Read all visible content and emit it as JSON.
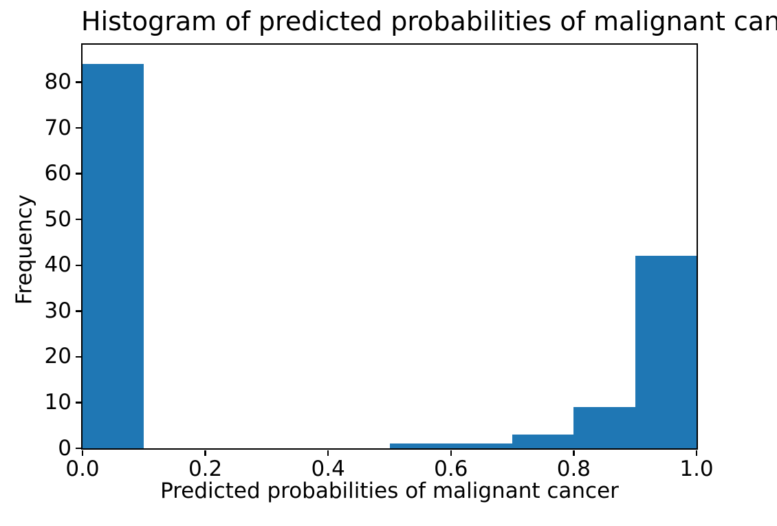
{
  "chart_data": {
    "type": "bar",
    "subtype": "histogram",
    "title": "Histogram of predicted probabilities of malignant cancer",
    "xlabel": "Predicted probabilities of malignant cancer",
    "ylabel": "Frequency",
    "bin_edges": [
      0.0,
      0.1,
      0.2,
      0.3,
      0.4,
      0.5,
      0.6,
      0.7,
      0.8,
      0.9,
      1.0
    ],
    "frequencies": [
      84,
      0,
      0,
      0,
      0,
      1,
      1,
      3,
      9,
      42
    ],
    "xlim": [
      0.0,
      1.0
    ],
    "ylim": [
      0.0,
      88.2
    ],
    "x_tick_values": [
      0.0,
      0.2,
      0.4,
      0.6,
      0.8,
      1.0
    ],
    "x_tick_labels": [
      "0.0",
      "0.2",
      "0.4",
      "0.6",
      "0.8",
      "1.0"
    ],
    "y_tick_values": [
      0,
      10,
      20,
      30,
      40,
      50,
      60,
      70,
      80
    ],
    "y_tick_labels": [
      "0",
      "10",
      "20",
      "30",
      "40",
      "50",
      "60",
      "70",
      "80"
    ],
    "bar_color": "#1f77b4",
    "axis_color": "#000000",
    "background_color": "#ffffff",
    "grid": false,
    "legend": null
  }
}
